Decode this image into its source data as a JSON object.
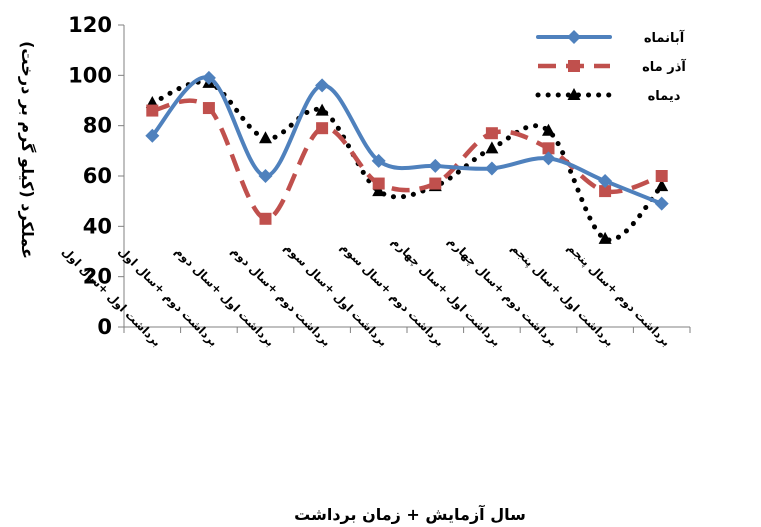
{
  "chart_data": {
    "type": "line",
    "title": "",
    "xlabel": "سال آزمایش + زمان برداشت",
    "ylabel": "عملکرد (کیلو گرم بر درخت)",
    "ylim": [
      0,
      120
    ],
    "yticks": [
      0,
      20,
      40,
      60,
      80,
      100,
      120
    ],
    "grid": false,
    "legend_position": "top-right",
    "categories": [
      "برداشت اول +سال اول",
      "برداشت دوم +سال اول",
      "برداشت اول +سال دوم",
      "برداشت دوم +سال دوم",
      "برداشت اول +سال سوم",
      "برداشت دوم +سال سوم",
      "برداشت اول +سال چهارم",
      "برداشت دوم +سال چهارم",
      "برداشت اول +سال پنجم",
      "برداشت دوم +سال پنجم"
    ],
    "series": [
      {
        "name": "آبانماه",
        "values": [
          76,
          99,
          60,
          96,
          66,
          64,
          63,
          67,
          58,
          49
        ],
        "color": "#4f81bd",
        "style": "solid",
        "marker": "diamond"
      },
      {
        "name": "آذر ماه",
        "values": [
          86,
          87,
          43,
          79,
          57,
          57,
          77,
          71,
          54,
          60
        ],
        "color": "#c0504d",
        "style": "dashed",
        "marker": "square"
      },
      {
        "name": "دیماه",
        "values": [
          89,
          97,
          75,
          86,
          54,
          56,
          71,
          78,
          35,
          56
        ],
        "color": "#000000",
        "style": "dotted",
        "marker": "triangle"
      }
    ]
  }
}
